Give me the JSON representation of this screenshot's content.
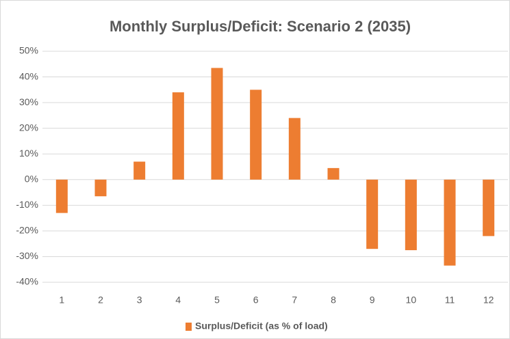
{
  "chart_data": {
    "type": "bar",
    "title": "Monthly Surplus/Deficit: Scenario 2 (2035)",
    "categories": [
      "1",
      "2",
      "3",
      "4",
      "5",
      "6",
      "7",
      "8",
      "9",
      "10",
      "11",
      "12"
    ],
    "series": [
      {
        "name": "Surplus/Deficit (as % of load)",
        "color": "#ed7d31",
        "values": [
          -13,
          -6.5,
          7,
          34,
          43.5,
          35,
          24,
          4.5,
          -27,
          -27.5,
          -33.5,
          -22
        ]
      }
    ],
    "ylim": [
      -40,
      50
    ],
    "yticks": [
      {
        "value": -40,
        "label": "-40%"
      },
      {
        "value": -30,
        "label": "-30%"
      },
      {
        "value": -20,
        "label": "-20%"
      },
      {
        "value": -10,
        "label": "-10%"
      },
      {
        "value": 0,
        "label": "0%"
      },
      {
        "value": 10,
        "label": "10%"
      },
      {
        "value": 20,
        "label": "20%"
      },
      {
        "value": 30,
        "label": "30%"
      },
      {
        "value": 40,
        "label": "40%"
      },
      {
        "value": 50,
        "label": "50%"
      }
    ],
    "grid": true,
    "legend": "bottom"
  }
}
